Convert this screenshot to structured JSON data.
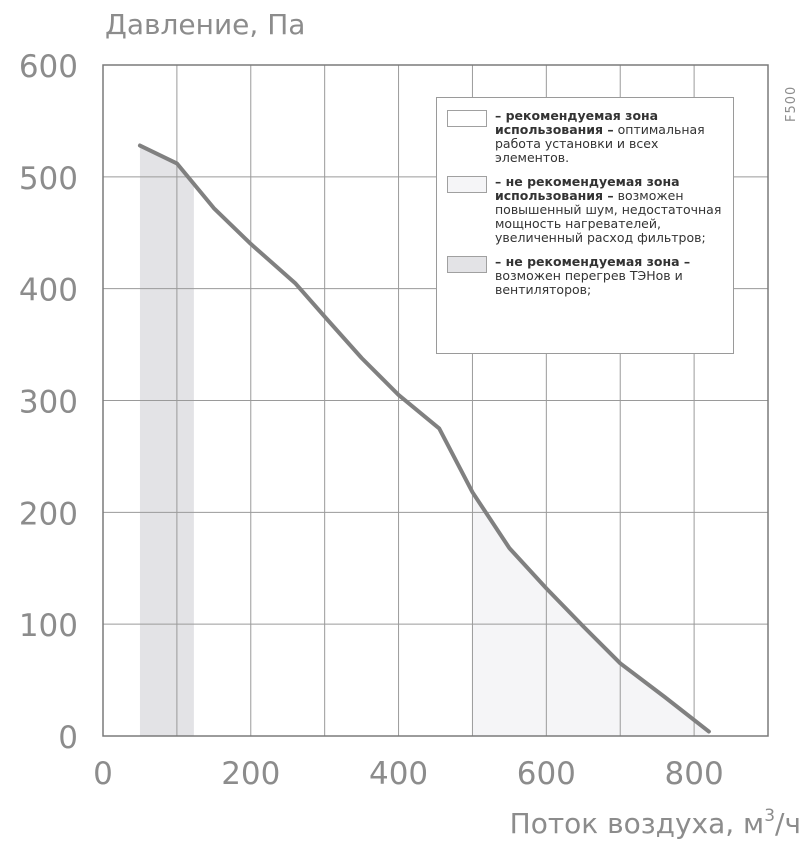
{
  "chart_data": {
    "type": "line",
    "ylabel": "Давление, Па",
    "xlabel_main": "Поток воздуха, м",
    "xlabel_sup": "3",
    "xlabel_tail": "/ч",
    "model_label": "F500",
    "xlim": [
      0,
      900
    ],
    "ylim": [
      0,
      600
    ],
    "x_ticks": [
      "0",
      "200",
      "400",
      "600",
      "800"
    ],
    "y_ticks": [
      "0",
      "100",
      "200",
      "300",
      "400",
      "500",
      "600"
    ],
    "grid": true,
    "series": [
      {
        "x": [
          50,
          100,
          150,
          200,
          260,
          300,
          350,
          400,
          455,
          500,
          550,
          600,
          650,
          700,
          760,
          820
        ],
        "y": [
          528,
          512,
          472,
          440,
          405,
          375,
          338,
          305,
          275,
          218,
          168,
          132,
          98,
          65,
          35,
          4
        ],
        "color": "#808080"
      }
    ],
    "zones": [
      {
        "type": "band",
        "x0": 50,
        "x1": 123,
        "color": "#e3e3e6"
      },
      {
        "type": "under-curve",
        "x0": 500,
        "x1": 820,
        "color": "#f5f5f7"
      }
    ],
    "legend": [
      {
        "swatch": "#ffffff",
        "bold": "– рекомендуемая зона использования –",
        "text": " оптимальная работа установки и всех элементов."
      },
      {
        "swatch": "#f5f5f7",
        "bold": "– не рекомендуемая зона использования –",
        "text": " возможен повышенный шум, недостаточная мощность нагревателей, увеличенный расход фильтров;"
      },
      {
        "swatch": "#e3e3e6",
        "bold": "– не рекомендуемая зона –",
        "text": " возможен перегрев ТЭНов и вентиляторов;"
      }
    ],
    "legend_position": "top-right"
  }
}
